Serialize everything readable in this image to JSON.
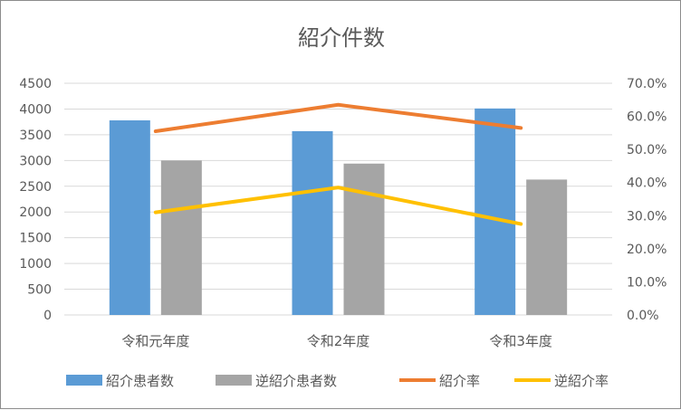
{
  "chart_data": {
    "type": "bar",
    "title": "紹介件数",
    "categories": [
      "令和元年度",
      "令和2年度",
      "令和3年度"
    ],
    "y_left": {
      "range": [
        0,
        4500
      ],
      "ticks": [
        "4500",
        "4000",
        "3500",
        "3000",
        "2500",
        "2000",
        "1500",
        "1000",
        "500",
        "0"
      ]
    },
    "y_right": {
      "range": [
        0,
        0.7
      ],
      "ticks": [
        "70.0%",
        "60.0%",
        "50.0%",
        "40.0%",
        "30.0%",
        "20.0%",
        "10.0%",
        "0.0%"
      ]
    },
    "grid": true,
    "legend_position": "bottom",
    "series": [
      {
        "name": "紹介患者数",
        "type": "bar",
        "axis": "left",
        "color": "#5b9bd5",
        "values": [
          3780,
          3570,
          4010
        ]
      },
      {
        "name": "逆紹介患者数",
        "type": "bar",
        "axis": "left",
        "color": "#a5a5a5",
        "values": [
          3000,
          2940,
          2630
        ]
      },
      {
        "name": "紹介率",
        "type": "line",
        "axis": "right",
        "color": "#ed7d31",
        "values": [
          0.555,
          0.635,
          0.565
        ]
      },
      {
        "name": "逆紹介率",
        "type": "line",
        "axis": "right",
        "color": "#ffc000",
        "values": [
          0.31,
          0.385,
          0.275
        ]
      }
    ]
  }
}
